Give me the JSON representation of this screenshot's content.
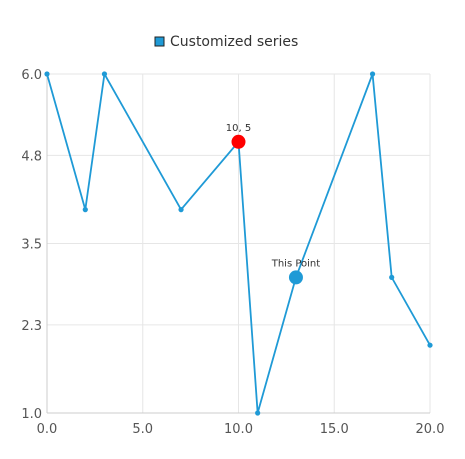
{
  "chart_data": {
    "type": "line",
    "series": [
      {
        "name": "Customized series",
        "color": "#1f9ad6",
        "x": [
          0,
          2,
          3,
          7,
          10,
          11,
          13,
          17,
          18,
          20
        ],
        "y": [
          6,
          4,
          6,
          4,
          5,
          1,
          3,
          6,
          3,
          2
        ]
      }
    ],
    "highlighted_points": [
      {
        "index": 4,
        "label": "10, 5",
        "color": "#ff0000"
      },
      {
        "index": 6,
        "label": "This Point",
        "color": "#1f9ad6"
      }
    ],
    "xlim": [
      0,
      20
    ],
    "ylim": [
      1,
      6
    ],
    "x_ticks": [
      "0.0",
      "5.0",
      "10.0",
      "15.0",
      "20.0"
    ],
    "y_ticks": [
      "1.0",
      "2.3",
      "3.5",
      "4.8",
      "6.0"
    ],
    "grid": true,
    "legend_position": "top-center"
  }
}
